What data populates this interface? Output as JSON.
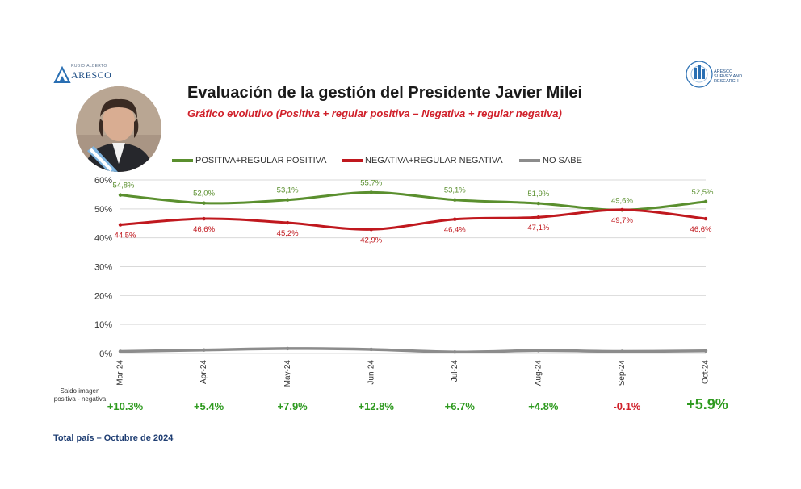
{
  "header": {
    "title": "Evaluación de la gestión del Presidente Javier Milei",
    "subtitle": "Gráfico evolutivo (Positiva + regular positiva – Negativa + regular negativa)"
  },
  "logos": {
    "left_tagline": "RUBIO·ALBERTO",
    "left_name": "ARESCO",
    "right_lines": [
      "ARESCO",
      "SURVEY AND",
      "RESEARCH"
    ]
  },
  "saldo_label": "Saldo imagen positiva - negativa",
  "footer": "Total país – Octubre de 2024",
  "colors": {
    "positive": "#5a8f2e",
    "negative": "#c0181e",
    "nosabe": "#8c8c8c",
    "saldo_pos": "#2e9a1f",
    "saldo_neg": "#d0202a"
  },
  "chart_data": {
    "type": "line",
    "categories": [
      "Mar-24",
      "Apr-24",
      "May-24",
      "Jun-24",
      "Jul-24",
      "Aug-24",
      "Sep-24",
      "Oct-24"
    ],
    "ylim": [
      0,
      60
    ],
    "yticks": [
      "0%",
      "10%",
      "20%",
      "30%",
      "40%",
      "50%",
      "60%"
    ],
    "grid": true,
    "legend_position": "top",
    "series": [
      {
        "name": "POSITIVA+REGULAR POSITIVA",
        "color": "#5a8f2e",
        "values": [
          54.8,
          52.0,
          53.1,
          55.7,
          53.1,
          51.9,
          49.6,
          52.5
        ],
        "labels": [
          "54,8%",
          "52,0%",
          "53,1%",
          "55,7%",
          "53,1%",
          "51,9%",
          "49,6%",
          "52,5%"
        ]
      },
      {
        "name": "NEGATIVA+REGULAR NEGATIVA",
        "color": "#c0181e",
        "values": [
          44.5,
          46.6,
          45.2,
          42.9,
          46.4,
          47.1,
          49.7,
          46.6
        ],
        "labels": [
          "44,5%",
          "46,6%",
          "45,2%",
          "42,9%",
          "46,4%",
          "47,1%",
          "49,7%",
          "46,6%"
        ]
      },
      {
        "name": "NO SABE",
        "color": "#8c8c8c",
        "values": [
          0.7,
          1.2,
          1.7,
          1.4,
          0.5,
          1.0,
          0.7,
          0.9
        ]
      }
    ],
    "saldo": [
      "+10.3%",
      "+5.4%",
      "+7.9%",
      "+12.8%",
      "+6.7%",
      "+4.8%",
      "-0.1%",
      "+5.9%"
    ]
  }
}
